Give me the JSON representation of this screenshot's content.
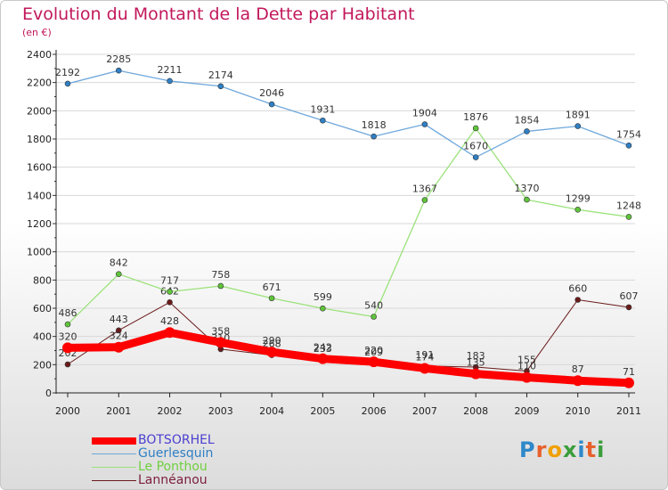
{
  "header": {
    "title": "Evolution du Montant de la Dette par Habitant",
    "subtitle": "(en €)"
  },
  "logo": {
    "letters": [
      {
        "ch": "P",
        "color": "#2e88c9"
      },
      {
        "ch": "r",
        "color": "#e8602c"
      },
      {
        "ch": "o",
        "color": "#f0a000"
      },
      {
        "ch": "x",
        "color": "#3a9d3a"
      },
      {
        "ch": "i",
        "color": "#2e88c9"
      },
      {
        "ch": "t",
        "color": "#e8602c"
      },
      {
        "ch": "i",
        "color": "#3a9d3a"
      }
    ]
  },
  "chart_data": {
    "type": "line",
    "title": "Evolution du Montant de la Dette par Habitant",
    "subtitle": "(en €)",
    "categories": [
      "2000",
      "2001",
      "2002",
      "2003",
      "2004",
      "2005",
      "2006",
      "2007",
      "2008",
      "2009",
      "2010",
      "2011"
    ],
    "ylim": [
      0,
      2400
    ],
    "yticks": [
      0,
      200,
      400,
      600,
      800,
      1000,
      1200,
      1400,
      1600,
      1800,
      2000,
      2200,
      2400
    ],
    "grid": true,
    "legend_position": "bottom-left",
    "series": [
      {
        "name": "Lannéanou",
        "color": "#6b1a1a",
        "point_color": "#6b1a1a",
        "legend_color": "#7a1e3a",
        "width": 1,
        "values": [
          202,
          443,
          642,
          310,
          268,
          233,
          209,
          191,
          183,
          155,
          660,
          607
        ]
      },
      {
        "name": "Le Ponthou",
        "color": "#9be27a",
        "point_color": "#5fc43a",
        "legend_color": "#6fcf3e",
        "width": 1.3,
        "values": [
          486,
          842,
          717,
          758,
          671,
          599,
          540,
          1367,
          1876,
          1370,
          1299,
          1248
        ]
      },
      {
        "name": "Guerlesquin",
        "color": "#6fa8dc",
        "point_color": "#2f7fc4",
        "legend_color": "#2f7fc4",
        "width": 1.3,
        "values": [
          2192,
          2285,
          2211,
          2174,
          2046,
          1931,
          1818,
          1904,
          1670,
          1854,
          1891,
          1754
        ]
      },
      {
        "name": "BOTSORHEL",
        "color": "#ff0000",
        "point_color": "#ff0000",
        "legend_color": "#4a3fd0",
        "width": 9,
        "values": [
          320,
          324,
          428,
          358,
          290,
          242,
          220,
          174,
          135,
          110,
          87,
          71
        ]
      }
    ],
    "legend_order": [
      "BOTSORHEL",
      "Guerlesquin",
      "Le Ponthou",
      "Lannéanou"
    ]
  }
}
